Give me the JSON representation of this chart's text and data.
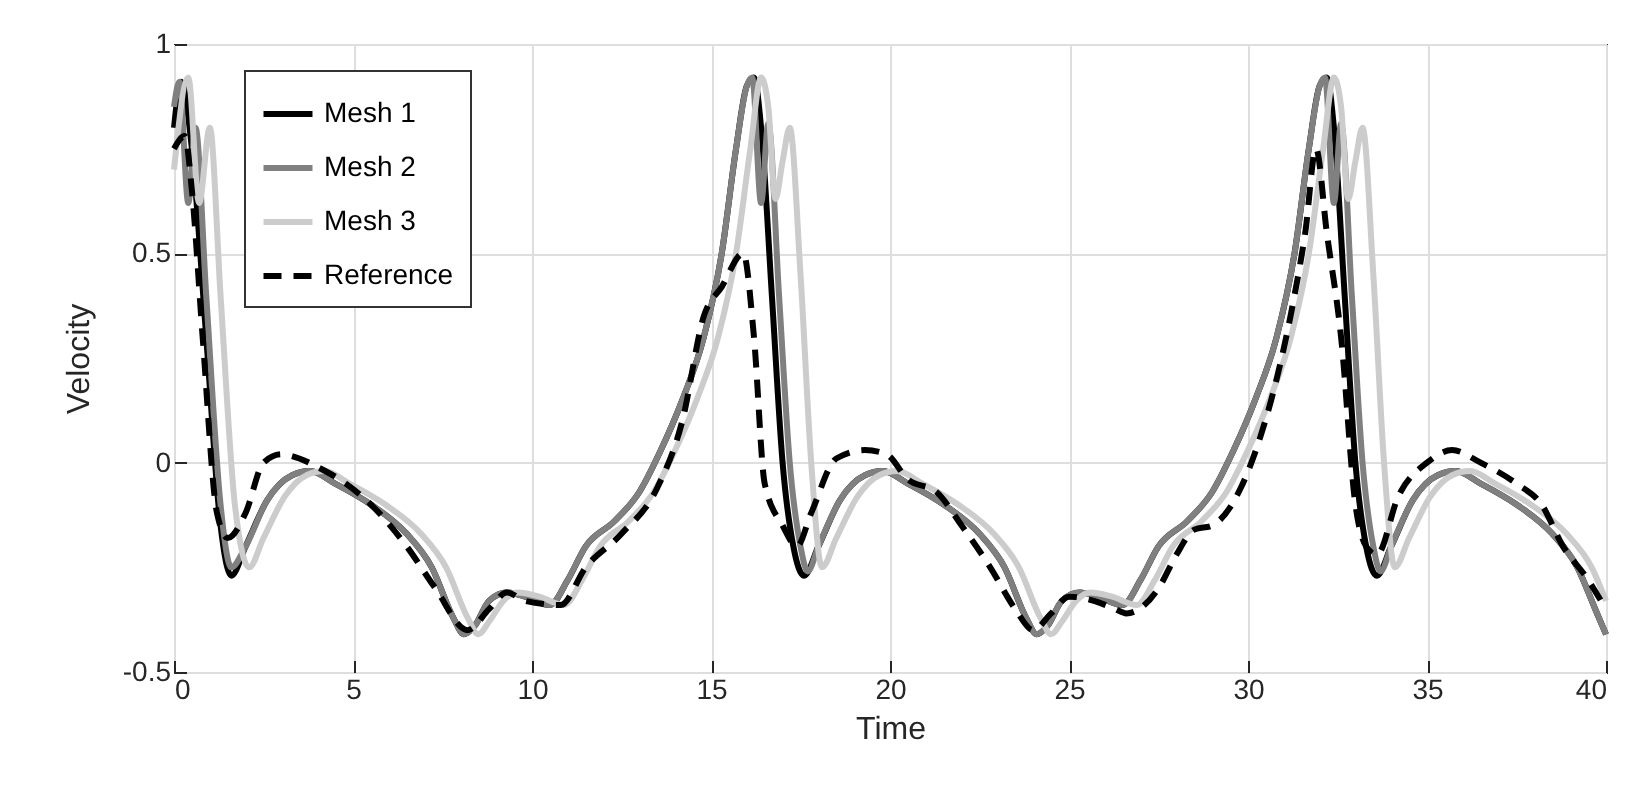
{
  "chart_data": {
    "type": "line",
    "xlabel": "Time",
    "ylabel": "Velocity",
    "xlim": [
      0,
      40
    ],
    "ylim": [
      -0.5,
      1
    ],
    "xticks": [
      0,
      5,
      10,
      15,
      20,
      25,
      30,
      35,
      40
    ],
    "yticks": [
      -0.5,
      0,
      0.5,
      1
    ],
    "grid": true,
    "legend": "top left",
    "series": [
      {
        "name": "Mesh 1",
        "color": "#000000",
        "line_style": "solid",
        "x": [
          0,
          0.2,
          0.5,
          0.9,
          1.3,
          1.6,
          2.0,
          2.6,
          3.3,
          3.8,
          4.5,
          5.5,
          6.5,
          7.2,
          7.8,
          8.1,
          8.4,
          8.8,
          9.3,
          9.8,
          10.5,
          11.0,
          11.5,
          12.3,
          13.0,
          13.6,
          14.2,
          14.8,
          15.3,
          15.7,
          16.0,
          16.2,
          16.4,
          16.7,
          17.0,
          17.3,
          17.6,
          18.0,
          18.6,
          19.3,
          19.8,
          20.5,
          21.5,
          22.5,
          23.2,
          23.8,
          24.1,
          24.4,
          24.8,
          25.3,
          25.8,
          26.5,
          27.0,
          27.5,
          28.3,
          29.0,
          29.6,
          30.2,
          30.8,
          31.3,
          31.7,
          32.0,
          32.2,
          32.4,
          32.7,
          33.0,
          33.3,
          33.6,
          34.0,
          34.6,
          35.3,
          35.8,
          36.5,
          37.5,
          38.5,
          39.2,
          39.7,
          40
        ],
        "values": [
          0.8,
          0.91,
          0.75,
          0.3,
          -0.15,
          -0.27,
          -0.2,
          -0.09,
          -0.03,
          -0.02,
          -0.05,
          -0.1,
          -0.17,
          -0.25,
          -0.37,
          -0.41,
          -0.39,
          -0.33,
          -0.31,
          -0.32,
          -0.34,
          -0.28,
          -0.2,
          -0.14,
          -0.07,
          0.03,
          0.15,
          0.3,
          0.5,
          0.75,
          0.9,
          0.92,
          0.8,
          0.4,
          0.0,
          -0.2,
          -0.27,
          -0.2,
          -0.09,
          -0.03,
          -0.02,
          -0.05,
          -0.1,
          -0.17,
          -0.25,
          -0.37,
          -0.41,
          -0.39,
          -0.33,
          -0.31,
          -0.32,
          -0.34,
          -0.28,
          -0.2,
          -0.14,
          -0.07,
          0.03,
          0.15,
          0.3,
          0.5,
          0.75,
          0.9,
          0.92,
          0.8,
          0.4,
          0.0,
          -0.2,
          -0.27,
          -0.2,
          -0.09,
          -0.03,
          -0.02,
          -0.05,
          -0.1,
          -0.17,
          -0.25,
          -0.35,
          -0.41
        ]
      },
      {
        "name": "Mesh 2",
        "color": "#808080",
        "line_style": "solid",
        "x": [
          0,
          0.15,
          0.4,
          0.6,
          0.9,
          1.3,
          1.6,
          2.0,
          2.6,
          3.3,
          3.8,
          4.5,
          5.5,
          6.5,
          7.2,
          7.8,
          8.1,
          8.4,
          8.8,
          9.3,
          9.8,
          10.5,
          11.0,
          11.5,
          12.3,
          13.0,
          13.6,
          14.2,
          14.8,
          15.3,
          15.7,
          16.0,
          16.15,
          16.4,
          16.6,
          16.9,
          17.2,
          17.5,
          17.7,
          18.0,
          18.6,
          19.3,
          19.8,
          20.5,
          21.5,
          22.5,
          23.2,
          23.8,
          24.1,
          24.4,
          24.8,
          25.3,
          25.8,
          26.5,
          27.0,
          27.5,
          28.3,
          29.0,
          29.6,
          30.2,
          30.8,
          31.3,
          31.7,
          32.0,
          32.15,
          32.4,
          32.6,
          32.9,
          33.2,
          33.5,
          33.7,
          34.0,
          34.6,
          35.3,
          35.8,
          36.5,
          37.5,
          38.5,
          39.2,
          39.7,
          40
        ],
        "values": [
          0.85,
          0.91,
          0.62,
          0.8,
          0.4,
          -0.1,
          -0.25,
          -0.2,
          -0.09,
          -0.03,
          -0.02,
          -0.05,
          -0.1,
          -0.17,
          -0.25,
          -0.37,
          -0.41,
          -0.39,
          -0.33,
          -0.31,
          -0.32,
          -0.34,
          -0.28,
          -0.2,
          -0.14,
          -0.07,
          0.03,
          0.15,
          0.3,
          0.5,
          0.75,
          0.9,
          0.92,
          0.62,
          0.81,
          0.4,
          0.0,
          -0.2,
          -0.26,
          -0.2,
          -0.09,
          -0.03,
          -0.02,
          -0.05,
          -0.1,
          -0.17,
          -0.25,
          -0.37,
          -0.41,
          -0.39,
          -0.33,
          -0.31,
          -0.32,
          -0.34,
          -0.28,
          -0.2,
          -0.14,
          -0.07,
          0.03,
          0.15,
          0.3,
          0.5,
          0.75,
          0.9,
          0.92,
          0.62,
          0.81,
          0.4,
          0.0,
          -0.2,
          -0.26,
          -0.2,
          -0.09,
          -0.03,
          -0.02,
          -0.05,
          -0.1,
          -0.17,
          -0.25,
          -0.35,
          -0.41
        ]
      },
      {
        "name": "Mesh 3",
        "color": "#cccccc",
        "line_style": "solid",
        "x": [
          0,
          0.4,
          0.7,
          1.0,
          1.3,
          1.7,
          2.1,
          2.5,
          3.1,
          3.7,
          4.2,
          4.9,
          5.9,
          6.9,
          7.6,
          8.2,
          8.5,
          8.8,
          9.2,
          9.6,
          10.2,
          10.9,
          11.4,
          11.9,
          12.7,
          13.4,
          14.0,
          14.6,
          15.2,
          15.7,
          16.1,
          16.4,
          16.6,
          16.8,
          17.0,
          17.2,
          17.5,
          17.8,
          18.1,
          18.5,
          19.1,
          19.7,
          20.2,
          20.9,
          21.9,
          22.9,
          23.6,
          24.2,
          24.5,
          24.8,
          25.2,
          25.6,
          26.2,
          26.9,
          27.4,
          27.9,
          28.7,
          29.4,
          30.0,
          30.6,
          31.2,
          31.7,
          32.1,
          32.4,
          32.6,
          32.8,
          33.0,
          33.2,
          33.5,
          33.8,
          34.1,
          34.5,
          35.1,
          35.7,
          36.2,
          36.9,
          37.9,
          38.9,
          39.6,
          40
        ],
        "values": [
          0.7,
          0.92,
          0.62,
          0.8,
          0.4,
          -0.1,
          -0.25,
          -0.18,
          -0.08,
          -0.03,
          -0.02,
          -0.05,
          -0.1,
          -0.17,
          -0.25,
          -0.37,
          -0.41,
          -0.38,
          -0.33,
          -0.31,
          -0.32,
          -0.34,
          -0.28,
          -0.2,
          -0.14,
          -0.07,
          0.03,
          0.15,
          0.3,
          0.5,
          0.75,
          0.92,
          0.85,
          0.63,
          0.72,
          0.8,
          0.45,
          0.0,
          -0.25,
          -0.18,
          -0.08,
          -0.03,
          -0.02,
          -0.05,
          -0.1,
          -0.17,
          -0.25,
          -0.37,
          -0.41,
          -0.38,
          -0.33,
          -0.31,
          -0.32,
          -0.34,
          -0.28,
          -0.2,
          -0.14,
          -0.07,
          0.03,
          0.15,
          0.3,
          0.5,
          0.75,
          0.92,
          0.85,
          0.63,
          0.72,
          0.8,
          0.45,
          0.0,
          -0.25,
          -0.18,
          -0.08,
          -0.03,
          -0.02,
          -0.05,
          -0.1,
          -0.17,
          -0.25,
          -0.33
        ]
      },
      {
        "name": "Reference",
        "color": "#000000",
        "line_style": "dashed",
        "x": [
          0,
          0.3,
          0.5,
          0.8,
          1.2,
          1.5,
          2.0,
          2.5,
          3.0,
          3.5,
          4.0,
          4.8,
          5.5,
          6.5,
          7.3,
          8.2,
          8.8,
          9.3,
          9.8,
          10.8,
          11.5,
          12.5,
          13.5,
          14.2,
          14.8,
          15.3,
          15.9,
          16.2,
          16.5,
          17.0,
          17.4,
          17.8,
          18.5,
          19.3,
          19.9,
          20.5,
          21.3,
          22.0,
          22.8,
          23.5,
          24.0,
          24.5,
          25.0,
          25.7,
          26.3,
          26.6,
          27.5,
          28.0,
          28.5,
          29.0,
          29.8,
          30.3,
          30.8,
          31.3,
          31.6,
          31.9,
          32.2,
          32.6,
          33.0,
          33.3,
          33.6,
          34.2,
          35.0,
          35.7,
          36.5,
          37.5,
          38.2,
          38.8,
          39.5,
          40
        ],
        "values": [
          0.75,
          0.78,
          0.65,
          0.3,
          -0.12,
          -0.18,
          -0.12,
          0.0,
          0.02,
          0.01,
          -0.01,
          -0.05,
          -0.1,
          -0.2,
          -0.3,
          -0.4,
          -0.35,
          -0.31,
          -0.33,
          -0.34,
          -0.25,
          -0.17,
          -0.06,
          0.1,
          0.35,
          0.42,
          0.5,
          0.3,
          -0.05,
          -0.15,
          -0.2,
          -0.12,
          0.01,
          0.03,
          0.02,
          -0.04,
          -0.07,
          -0.15,
          -0.25,
          -0.35,
          -0.4,
          -0.36,
          -0.32,
          -0.33,
          -0.35,
          -0.36,
          -0.3,
          -0.22,
          -0.16,
          -0.15,
          -0.06,
          0.05,
          0.2,
          0.4,
          0.55,
          0.75,
          0.55,
          0.3,
          -0.1,
          -0.2,
          -0.22,
          -0.08,
          0.0,
          0.03,
          0.0,
          -0.05,
          -0.1,
          -0.2,
          -0.28,
          -0.35
        ]
      }
    ]
  }
}
